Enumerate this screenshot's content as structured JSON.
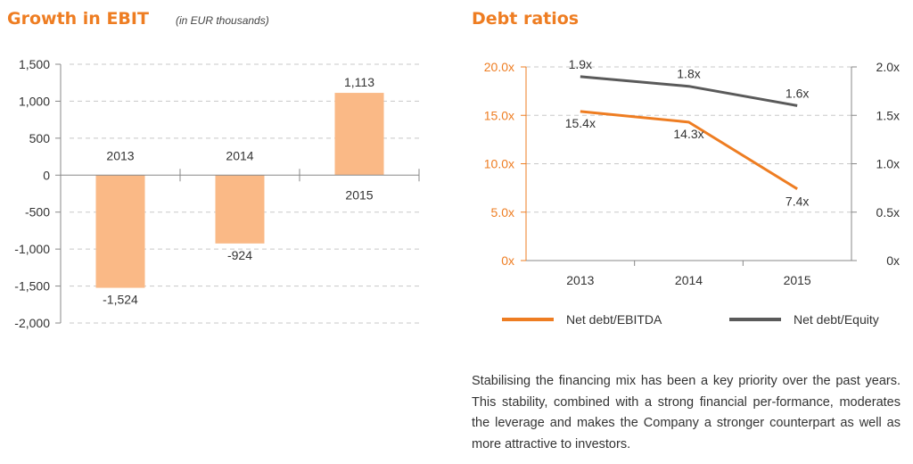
{
  "colors": {
    "title": "#ee7d22",
    "bar": "#fab986",
    "net_debt_ebitda": "#ee7d22",
    "net_debt_equity": "#5a5a5a",
    "axis": "#888888",
    "grid": "#c8c8c8"
  },
  "ebit": {
    "title": "Growth in EBIT",
    "subtitle": "(in EUR thousands)"
  },
  "debt": {
    "title": "Debt ratios"
  },
  "text": {
    "paragraph": "Stabilising the financing mix has been a key priority over the past years. This stability, combined with a strong financial per-formance, moderates the leverage and makes the Company a stronger counterpart as well as more attractive to investors."
  },
  "chart_data": [
    {
      "type": "bar",
      "title": "Growth in EBIT",
      "subtitle": "(in EUR thousands)",
      "categories": [
        "2013",
        "2014",
        "2015"
      ],
      "values": [
        -1524,
        -924,
        1113
      ],
      "value_labels": [
        "-1,524",
        "-924",
        "1,113"
      ],
      "y_ticks": [
        "1,500",
        "1,000",
        "500",
        "0",
        "-500",
        "-1,000",
        "-1,500",
        "-2,000"
      ],
      "y_tick_values": [
        1500,
        1000,
        500,
        0,
        -500,
        -1000,
        -1500,
        -2000
      ],
      "ylim": [
        -2000,
        1500
      ],
      "grid": true
    },
    {
      "type": "line",
      "title": "Debt ratios",
      "categories": [
        "2013",
        "2014",
        "2015"
      ],
      "series": [
        {
          "name": "Net debt/EBITDA",
          "axis": "left",
          "values": [
            15.4,
            14.3,
            7.4
          ],
          "value_labels": [
            "15.4x",
            "14.3x",
            "7.4x"
          ]
        },
        {
          "name": "Net debt/Equity",
          "axis": "right",
          "values": [
            1.9,
            1.8,
            1.6
          ],
          "value_labels": [
            "1.9x",
            "1.8x",
            "1.6x"
          ]
        }
      ],
      "y_left_ticks": [
        "20.0x",
        "15.0x",
        "10.0x",
        "5.0x",
        "0x"
      ],
      "y_left_tick_values": [
        20,
        15,
        10,
        5,
        0
      ],
      "ylim_left": [
        0,
        20
      ],
      "y_right_ticks": [
        "2.0x",
        "1.5x",
        "1.0x",
        "0.5x",
        "0x"
      ],
      "y_right_tick_values": [
        2,
        1.5,
        1,
        0.5,
        0
      ],
      "ylim_right": [
        0,
        2
      ],
      "legend_position": "bottom",
      "grid": true
    }
  ]
}
